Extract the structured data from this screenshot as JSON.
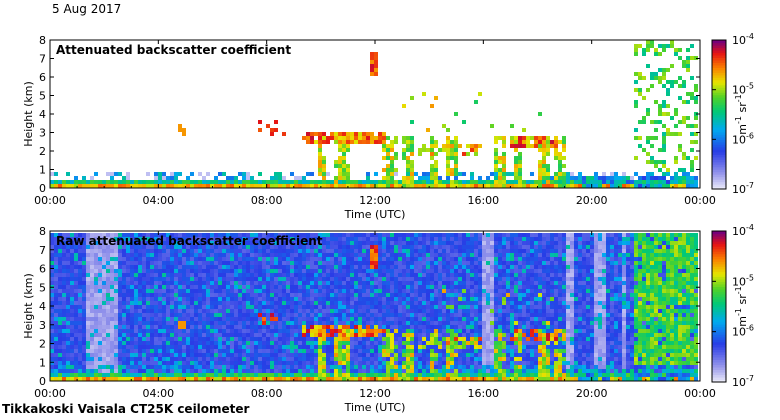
{
  "header": {
    "date": "5 Aug 2017"
  },
  "footer": {
    "instrument": "Tikkakoski Vaisala CT25K ceilometer"
  },
  "chart_data": [
    {
      "type": "heatmap",
      "title": "Attenuated backscatter coefficient",
      "xlabel": "Time (UTC)",
      "ylabel": "Height (km)",
      "xlim": [
        "00:00",
        "00:00"
      ],
      "ylim": [
        0,
        8
      ],
      "x_ticks": [
        "00:00",
        "04:00",
        "08:00",
        "12:00",
        "16:00",
        "20:00",
        "00:00"
      ],
      "y_ticks": [
        "0",
        "1",
        "2",
        "3",
        "4",
        "5",
        "6",
        "7",
        "8"
      ],
      "colorbar": {
        "scale": "log",
        "range": [
          1e-07,
          0.0001
        ],
        "ticks": [
          "10^-7",
          "10^-6",
          "10^-5",
          "10^-4"
        ],
        "label": "m^-1 sr^-1"
      }
    },
    {
      "type": "heatmap",
      "title": "Raw attenuated backscatter coefficient",
      "xlabel": "Time (UTC)",
      "ylabel": "Height (km)",
      "xlim": [
        "00:00",
        "00:00"
      ],
      "ylim": [
        0,
        8
      ],
      "x_ticks": [
        "00:00",
        "04:00",
        "08:00",
        "12:00",
        "16:00",
        "20:00",
        "00:00"
      ],
      "y_ticks": [
        "0",
        "1",
        "2",
        "3",
        "4",
        "5",
        "6",
        "7",
        "8"
      ],
      "colorbar": {
        "scale": "log",
        "range": [
          1e-07,
          0.0001
        ],
        "ticks": [
          "10^-7",
          "10^-6",
          "10^-5",
          "10^-4"
        ],
        "label": "m^-1 sr^-1"
      }
    }
  ]
}
